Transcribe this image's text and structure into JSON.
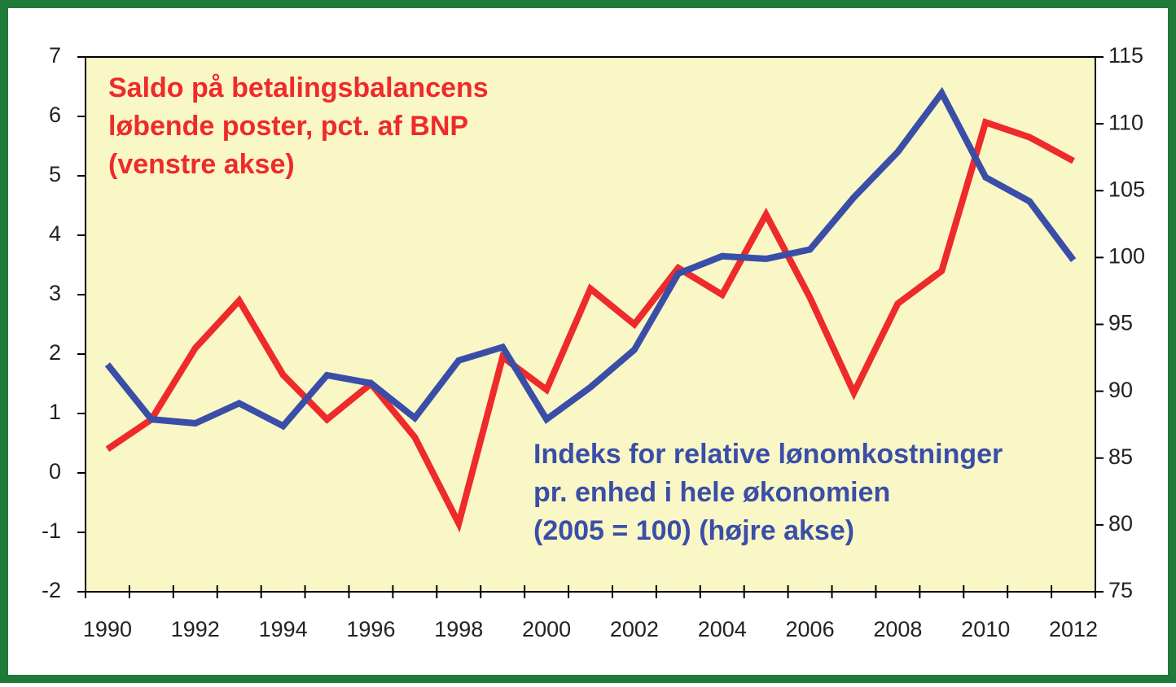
{
  "chart_data": {
    "type": "line",
    "categories": [
      "1990",
      null,
      "1992",
      null,
      "1994",
      null,
      "1996",
      null,
      "1998",
      null,
      "2000",
      null,
      "2002",
      null,
      "2004",
      null,
      "2006",
      null,
      "2008",
      null,
      "2010",
      null,
      "2012"
    ],
    "series": [
      {
        "color": "#ee2a2a",
        "values": [
          0.4,
          0.9,
          2.1,
          2.9,
          1.65,
          0.9,
          1.5,
          0.6,
          -0.85,
          1.95,
          1.4,
          3.1,
          2.5,
          3.45,
          3.0,
          4.35,
          2.95,
          1.35,
          2.85,
          3.4,
          5.9,
          5.65,
          5.25
        ]
      },
      {
        "color": "#3a4ea8",
        "axis": "y2",
        "values": [
          92,
          87.9,
          87.6,
          89.1,
          87.4,
          91.2,
          90.6,
          88,
          92.3,
          93.3,
          87.9,
          90.3,
          93.1,
          98.8,
          100.1,
          99.9,
          100.6,
          104.5,
          107.9,
          112.3,
          106,
          104.2,
          99.8
        ]
      }
    ],
    "ylim": [
      -2,
      7
    ],
    "yticks": [
      -2,
      -1,
      0,
      1,
      2,
      3,
      4,
      5,
      6,
      7
    ],
    "y2lim": [
      75,
      115
    ],
    "y2ticks": [
      75,
      80,
      85,
      90,
      95,
      100,
      105,
      110,
      115
    ],
    "annotations": [
      {
        "color": "#ee2a2a",
        "lines": [
          "Saldo på betalingsbalancens",
          "løbende poster, pct. af BNP",
          "(venstre akse)"
        ]
      },
      {
        "color": "#3a4ea8",
        "lines": [
          "Indeks for relative lønomkostninger",
          "pr. enhed i hele økonomien",
          "(2005 = 100)   (højre akse)"
        ]
      }
    ]
  }
}
